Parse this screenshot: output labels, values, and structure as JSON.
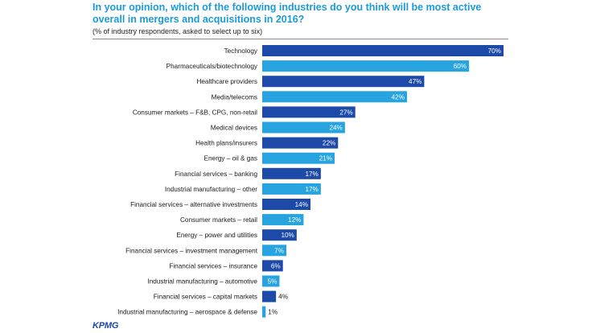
{
  "colors": {
    "title": "#1b9bd7",
    "bar_dark": "#1d4aa8",
    "bar_light": "#27a4df",
    "value_text_in_bar": "#ffffff",
    "value_text_outside": "#1a1a1a",
    "logo": "#1d4aa8"
  },
  "logo_text": "KPMG",
  "chart_data": {
    "type": "bar",
    "orientation": "horizontal",
    "title": "In your opinion, which of the following industries do you think will be most active overall in mergers and acquisitions in 2016?",
    "subtitle": "(% of industry respondents, asked to select up to six)",
    "value_suffix": "%",
    "xlim": [
      0,
      70
    ],
    "grid": false,
    "legend": "none",
    "categories": [
      "Technology",
      "Pharmaceuticals/biotechnology",
      "Healthcare providers",
      "Media/telecoms",
      "Consumer markets – F&B, CPG, non-retail",
      "Medical devices",
      "Health plans/insurers",
      "Energy – oil & gas",
      "Financial services – banking",
      "Industrial manufacturing – other",
      "Financial services –  alternative investments",
      "Consumer markets – retail",
      "Energy – power and utilities",
      "Financial services – investment management",
      "Financial services – insurance",
      "Industrial manufacturing – automotive",
      "Financial services – capital markets",
      "Industrial manufacturing – aerospace & defense"
    ],
    "values": [
      70,
      60,
      47,
      42,
      27,
      24,
      22,
      21,
      17,
      17,
      14,
      12,
      10,
      7,
      6,
      5,
      4,
      1
    ],
    "bar_color_pattern": [
      "dark",
      "light"
    ]
  }
}
